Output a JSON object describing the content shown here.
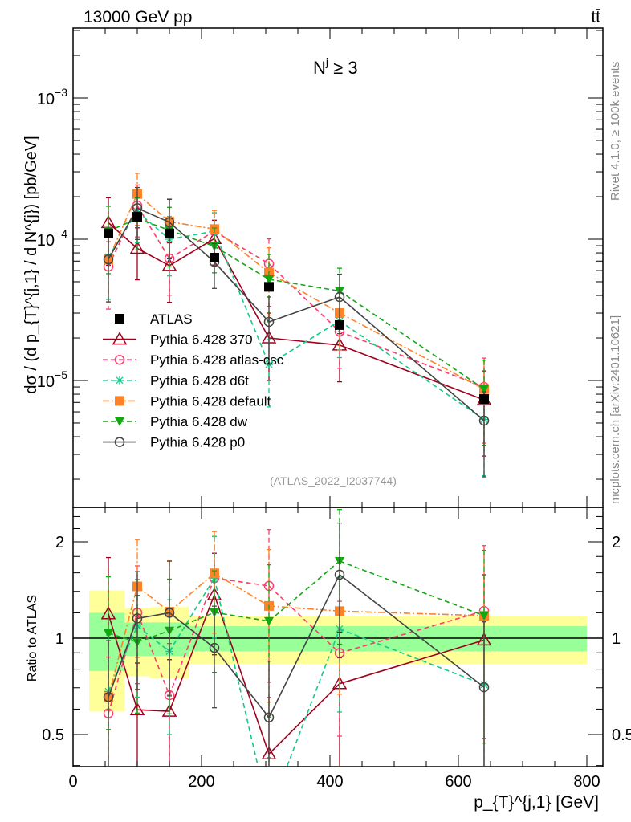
{
  "header": {
    "energy": "13000 GeV pp",
    "process": "tt̄"
  },
  "side_labels": {
    "rivet": "Rivet 4.1.0, ≥ 100k events",
    "source": "mcplots.cern.ch [arXiv:2401.10621]"
  },
  "chart_data": {
    "type": "line",
    "title": "N^j ≥ 3",
    "title_base": "N",
    "title_sup": "j",
    "title_rest": " ≥ 3",
    "analysis": "(ATLAS_2022_I2037744)",
    "xlabel": "p_{T}^{j,1} [GeV]",
    "xlabel_base": "p",
    "xlabel_sup": "j,1",
    "xlabel_sub": "{T}",
    "xlabel_rest": " [GeV]",
    "ylabel": "dσ / (d p_{T}^{j,1} / d N^{j}) [pb/GeV]",
    "ratio_ylabel": "Ratio to ATLAS",
    "xlim": [
      0,
      825
    ],
    "ylim": [
      3.1e-06,
      0.00312
    ],
    "ylog": true,
    "ratio_ylim": [
      0.397,
      2.56
    ],
    "ratio_ylog": true,
    "x_ticks": [
      "0",
      "200",
      "400",
      "600",
      "800"
    ],
    "y_ticks": [
      {
        "base": "10",
        "exp": "−3",
        "value": 0.001
      },
      {
        "base": "10",
        "exp": "−4",
        "value": 0.0001
      },
      {
        "base": "10",
        "exp": "−5",
        "value": 1e-05
      }
    ],
    "ratio_ticks": [
      {
        "label": "0.5",
        "value": 0.5
      },
      {
        "label": "1",
        "value": 1
      },
      {
        "label": "2",
        "value": 2
      }
    ],
    "legend_position": "center-left",
    "x": [
      55,
      100,
      150,
      220,
      305,
      415,
      640
    ],
    "bin_edges": [
      25,
      80,
      120,
      180,
      260,
      350,
      480,
      800
    ],
    "data_band_stat": [
      [
        0.79,
        1.2
      ],
      [
        0.88,
        1.12
      ],
      [
        0.88,
        1.12
      ],
      [
        0.91,
        1.09
      ],
      [
        0.91,
        1.09
      ],
      [
        0.91,
        1.09
      ],
      [
        0.91,
        1.09
      ]
    ],
    "data_band_total": [
      [
        0.59,
        1.41
      ],
      [
        0.76,
        1.24
      ],
      [
        0.75,
        1.25
      ],
      [
        0.83,
        1.17
      ],
      [
        0.83,
        1.17
      ],
      [
        0.83,
        1.17
      ],
      [
        0.83,
        1.17
      ]
    ],
    "mc_err_rel": [
      0.5,
      0.4,
      0.45,
      0.35,
      0.5,
      0.45,
      0.6
    ],
    "series": [
      {
        "name": "ATLAS",
        "color": "#000000",
        "marker": "square",
        "line": "none",
        "values": [
          0.00011,
          0.000144,
          0.00011,
          7.4e-05,
          4.6e-05,
          2.47e-05,
          7.4e-06
        ]
      },
      {
        "name": "Pythia 6.428 370",
        "color": "#a0001e",
        "marker": "triangle-open",
        "line": "solid",
        "values": [
          0.000131,
          8.6e-05,
          6.5e-05,
          0.000101,
          2e-05,
          1.78e-05,
          7.3e-06
        ]
      },
      {
        "name": "Pythia 6.428 atlas-csc",
        "color": "#ff3b6b",
        "marker": "circle-open",
        "line": "dashed",
        "values": [
          6.4e-05,
          0.000173,
          7.3e-05,
          0.000114,
          6.7e-05,
          2.22e-05,
          9e-06
        ]
      },
      {
        "name": "Pythia 6.428 d6t",
        "color": "#11cc88",
        "marker": "star",
        "line": "dashed",
        "values": [
          7.5e-05,
          0.000157,
          0.0001,
          0.000114,
          1.3e-05,
          2.64e-05,
          5.3e-06
        ]
      },
      {
        "name": "Pythia 6.428 default",
        "color": "#ff8226",
        "marker": "square",
        "line": "dashdot",
        "values": [
          7.2e-05,
          0.000209,
          0.000133,
          0.000118,
          5.8e-05,
          3e-05,
          8.7e-06
        ]
      },
      {
        "name": "Pythia 6.428 dw",
        "color": "#12a812",
        "marker": "triangle-down",
        "line": "dashed",
        "values": [
          0.000114,
          0.00014,
          0.000116,
          8.9e-05,
          5.2e-05,
          4.3e-05,
          8.7e-06
        ]
      },
      {
        "name": "Pythia 6.428 p0",
        "color": "#444444",
        "marker": "circle-open",
        "line": "solid",
        "values": [
          7.2e-05,
          0.000166,
          0.000132,
          6.9e-05,
          2.6e-05,
          3.9e-05,
          5.2e-06
        ]
      }
    ]
  }
}
